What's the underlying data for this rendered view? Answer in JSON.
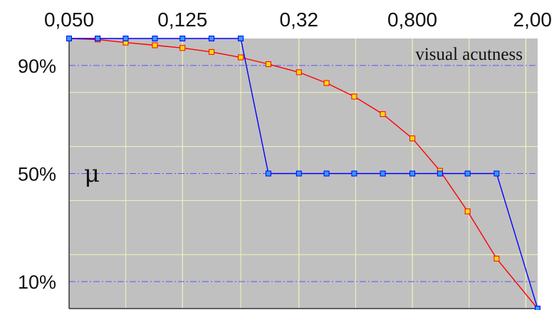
{
  "chart_data": {
    "type": "line",
    "x_scale": "log",
    "xlim": [
      0.05,
      2.2
    ],
    "ylim": [
      0,
      1
    ],
    "x_tick_labels": [
      {
        "value": 0.05,
        "label": "0,050"
      },
      {
        "value": 0.125,
        "label": "0,125"
      },
      {
        "value": 0.32,
        "label": "0,32"
      },
      {
        "value": 0.8,
        "label": "0,800"
      },
      {
        "value": 2.0,
        "label": "2,00"
      }
    ],
    "y_tick_labels": [
      {
        "value": 0.9,
        "label": "90%"
      },
      {
        "value": 0.5,
        "label": "50%"
      },
      {
        "value": 0.1,
        "label": "10%"
      }
    ],
    "x_title": "visual acutness",
    "y_title": "μ",
    "grid": true,
    "series": [
      {
        "color": "#0000ff",
        "marker_fill": "#3399ff",
        "points": [
          [
            0.05,
            1.0
          ],
          [
            0.063,
            1.0
          ],
          [
            0.079,
            1.0
          ],
          [
            0.1,
            1.0
          ],
          [
            0.125,
            1.0
          ],
          [
            0.158,
            1.0
          ],
          [
            0.2,
            1.0
          ],
          [
            0.25,
            0.5
          ],
          [
            0.32,
            0.5
          ],
          [
            0.4,
            0.5
          ],
          [
            0.5,
            0.5
          ],
          [
            0.63,
            0.5
          ],
          [
            0.8,
            0.5
          ],
          [
            1.0,
            0.5
          ],
          [
            1.25,
            0.5
          ],
          [
            1.58,
            0.5
          ],
          [
            2.2,
            0.0
          ]
        ]
      },
      {
        "color": "#ff0000",
        "marker_fill": "#ffdd00",
        "points": [
          [
            0.05,
            1.0
          ],
          [
            0.063,
            0.996
          ],
          [
            0.079,
            0.985
          ],
          [
            0.1,
            0.975
          ],
          [
            0.125,
            0.965
          ],
          [
            0.158,
            0.95
          ],
          [
            0.2,
            0.93
          ],
          [
            0.25,
            0.905
          ],
          [
            0.32,
            0.875
          ],
          [
            0.4,
            0.835
          ],
          [
            0.5,
            0.785
          ],
          [
            0.63,
            0.72
          ],
          [
            0.8,
            0.63
          ],
          [
            1.0,
            0.51
          ],
          [
            1.25,
            0.36
          ],
          [
            1.58,
            0.185
          ],
          [
            2.2,
            0.0
          ]
        ]
      }
    ]
  }
}
